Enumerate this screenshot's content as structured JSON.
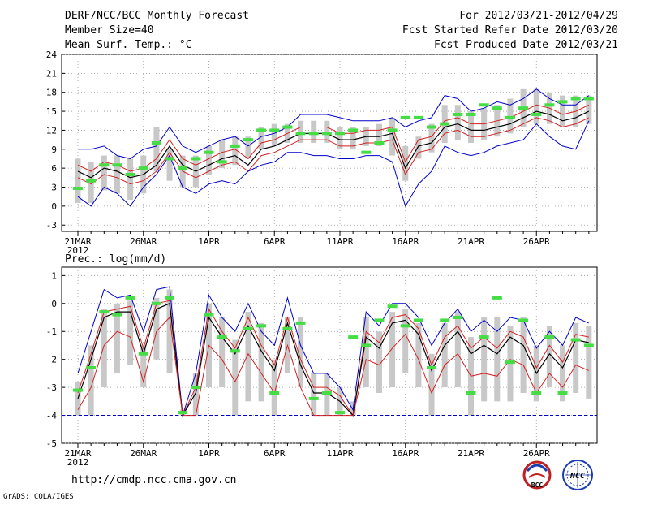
{
  "header": {
    "title": "DERF/NCC/BCC Monthly Forecast",
    "member_size": "Member Size=40",
    "period": "For 2012/03/21-2012/04/29",
    "started": "Fcst Started Refer Date 2012/03/20",
    "produced": "Fcst Produced Date 2012/03/21"
  },
  "footer": {
    "url": "http://cmdp.ncc.cma.gov.cn",
    "grads": "GrADS: COLA/IGES",
    "logo_bcc": "BCC",
    "logo_ncc": "NCC"
  },
  "colors": {
    "max_min": "#0000cc",
    "spread": "#d42020",
    "mean": "#000000",
    "obs": "#44dd44",
    "box": "#c8c8c8",
    "floor": "#0000cc"
  },
  "chart_data": [
    {
      "type": "line",
      "title": "Mean Surf. Temp.: °C",
      "ylabel": "°C",
      "ylim": [
        -4,
        24
      ],
      "yticks": [
        "-3",
        "0",
        "3",
        "6",
        "9",
        "12",
        "15",
        "18",
        "21",
        "24"
      ],
      "xticks": [
        "21MAR",
        "26MAR",
        "1APR",
        "6APR",
        "11APR",
        "16APR",
        "21APR",
        "26APR"
      ],
      "xyear": "2012",
      "days": 40,
      "series": [
        {
          "name": "max",
          "values": [
            9.0,
            9.0,
            9.5,
            8.0,
            7.5,
            9.0,
            9.5,
            12.5,
            9.5,
            8.5,
            9.5,
            10.5,
            11.0,
            9.5,
            11.0,
            11.5,
            12.5,
            14.5,
            14.5,
            14.5,
            14.0,
            13.5,
            13.5,
            13.5,
            14.0,
            12.5,
            13.5,
            14.0,
            17.5,
            17.0,
            15.0,
            15.5,
            16.5,
            16.0,
            17.0,
            18.5,
            17.0,
            16.0,
            16.0,
            17.5
          ]
        },
        {
          "name": "upper",
          "values": [
            6.5,
            5.5,
            7.0,
            6.5,
            5.5,
            6.0,
            7.5,
            10.5,
            7.5,
            6.5,
            7.5,
            8.5,
            9.0,
            7.5,
            10.0,
            10.5,
            11.5,
            12.5,
            12.5,
            12.5,
            11.5,
            11.5,
            12.0,
            12.0,
            12.5,
            7.0,
            10.5,
            11.0,
            13.5,
            14.0,
            13.0,
            13.0,
            13.5,
            14.0,
            15.0,
            16.0,
            15.5,
            14.5,
            15.0,
            16.0
          ]
        },
        {
          "name": "mean",
          "values": [
            5.5,
            4.5,
            6.0,
            5.5,
            4.5,
            5.0,
            6.5,
            9.5,
            6.5,
            5.5,
            6.5,
            7.5,
            8.0,
            6.5,
            9.0,
            9.5,
            10.5,
            11.5,
            11.5,
            11.5,
            10.5,
            10.5,
            11.0,
            11.0,
            11.5,
            6.0,
            9.5,
            10.0,
            12.5,
            13.0,
            12.0,
            12.0,
            12.5,
            13.0,
            14.0,
            15.0,
            14.5,
            13.5,
            14.0,
            15.0
          ]
        },
        {
          "name": "lower",
          "values": [
            4.5,
            3.5,
            5.0,
            4.5,
            3.5,
            4.0,
            5.5,
            8.5,
            5.5,
            4.5,
            5.5,
            6.5,
            7.0,
            5.5,
            8.0,
            8.5,
            9.5,
            10.5,
            10.5,
            10.5,
            9.5,
            9.5,
            10.0,
            10.0,
            10.5,
            5.0,
            8.5,
            9.0,
            11.5,
            12.0,
            11.0,
            11.0,
            11.5,
            12.0,
            13.0,
            14.0,
            13.5,
            12.5,
            13.0,
            14.0
          ]
        },
        {
          "name": "min",
          "values": [
            1.5,
            0.0,
            3.0,
            2.0,
            0.0,
            3.0,
            5.0,
            8.0,
            3.0,
            2.0,
            3.5,
            4.0,
            3.5,
            5.5,
            6.5,
            7.0,
            8.5,
            8.5,
            8.0,
            8.0,
            7.5,
            7.5,
            8.0,
            8.0,
            7.0,
            0.0,
            3.5,
            5.5,
            9.5,
            8.5,
            8.0,
            8.5,
            9.5,
            10.0,
            10.5,
            13.0,
            11.0,
            9.5,
            9.0,
            13.5
          ]
        },
        {
          "name": "observed",
          "values": [
            2.8,
            4.0,
            6.5,
            6.5,
            5.0,
            6.0,
            10.0,
            7.5,
            6.0,
            7.5,
            8.5,
            7.0,
            9.5,
            10.5,
            12.0,
            12.0,
            12.5,
            11.5,
            11.5,
            11.5,
            11.5,
            12.0,
            8.5,
            10.0,
            12.0,
            14.0,
            14.0,
            12.5,
            13.0,
            14.5,
            14.5,
            16.0,
            15.5,
            14.0,
            15.5,
            14.5,
            16.0,
            16.5,
            17.0,
            17.0
          ]
        }
      ],
      "boxes": [
        [
          0.5,
          7.5
        ],
        [
          0.5,
          7.0
        ],
        [
          2.5,
          8.0
        ],
        [
          2.0,
          8.0
        ],
        [
          1.0,
          7.5
        ],
        [
          2.0,
          8.0
        ],
        [
          5.5,
          12.5
        ],
        [
          4.0,
          9.0
        ],
        [
          3.0,
          8.0
        ],
        [
          3.0,
          8.0
        ],
        [
          5.0,
          9.5
        ],
        [
          6.0,
          10.5
        ],
        [
          6.5,
          11.0
        ],
        [
          7.5,
          11.0
        ],
        [
          9.0,
          12.5
        ],
        [
          9.5,
          13.0
        ],
        [
          10.0,
          13.0
        ],
        [
          10.0,
          13.5
        ],
        [
          10.0,
          13.5
        ],
        [
          10.0,
          13.5
        ],
        [
          9.0,
          12.5
        ],
        [
          9.0,
          12.5
        ],
        [
          9.5,
          12.5
        ],
        [
          9.5,
          13.0
        ],
        [
          8.0,
          14.0
        ],
        [
          4.0,
          9.5
        ],
        [
          7.5,
          11.0
        ],
        [
          8.5,
          13.0
        ],
        [
          10.0,
          16.0
        ],
        [
          10.5,
          16.0
        ],
        [
          10.0,
          15.0
        ],
        [
          10.5,
          15.5
        ],
        [
          11.0,
          16.0
        ],
        [
          11.5,
          17.0
        ],
        [
          12.5,
          18.5
        ],
        [
          13.0,
          18.5
        ],
        [
          13.0,
          18.0
        ],
        [
          12.5,
          17.5
        ],
        [
          12.5,
          17.5
        ],
        [
          13.0,
          17.5
        ]
      ]
    },
    {
      "type": "line",
      "title": "Prec.: log(mm/d)",
      "ylabel": "log(mm/d)",
      "ylim": [
        -5,
        1.3
      ],
      "yticks": [
        "-5",
        "-4",
        "-3",
        "-2",
        "-1",
        "0",
        "1"
      ],
      "xticks": [
        "21MAR",
        "26MAR",
        "1APR",
        "6APR",
        "11APR",
        "16APR",
        "21APR",
        "26APR"
      ],
      "xyear": "2012",
      "days": 40,
      "floor": -4,
      "series": [
        {
          "name": "max",
          "values": [
            -2.5,
            -1.0,
            0.5,
            0.2,
            0.3,
            -1.0,
            0.5,
            0.6,
            -4.0,
            -2.5,
            0.3,
            -0.5,
            -1.0,
            0.0,
            -1.0,
            -1.5,
            0.2,
            -1.5,
            -2.5,
            -2.5,
            -3.0,
            -3.8,
            -0.3,
            -0.8,
            0.0,
            0.0,
            -0.5,
            -1.5,
            -0.7,
            -0.2,
            -1.0,
            -0.6,
            -1.0,
            -0.5,
            -0.6,
            -1.6,
            -1.0,
            -1.5,
            -0.5,
            -0.7
          ]
        },
        {
          "name": "upper",
          "values": [
            -3.2,
            -1.8,
            -0.3,
            -0.2,
            -0.1,
            -1.6,
            0.0,
            0.1,
            -4.0,
            -3.0,
            -0.2,
            -1.0,
            -1.6,
            -0.5,
            -1.5,
            -2.2,
            -0.5,
            -2.0,
            -3.0,
            -3.0,
            -3.3,
            -4.0,
            -1.0,
            -1.4,
            -0.5,
            -0.4,
            -0.9,
            -2.2,
            -1.2,
            -0.8,
            -1.6,
            -1.2,
            -1.6,
            -1.0,
            -1.2,
            -2.3,
            -1.5,
            -2.1,
            -1.1,
            -1.2
          ]
        },
        {
          "name": "mean",
          "values": [
            -3.4,
            -2.0,
            -0.5,
            -0.3,
            -0.3,
            -1.8,
            -0.2,
            0.0,
            -4.0,
            -3.2,
            -0.5,
            -1.2,
            -1.8,
            -0.8,
            -1.7,
            -2.4,
            -0.7,
            -2.2,
            -3.2,
            -3.2,
            -3.5,
            -4.0,
            -1.2,
            -1.6,
            -0.7,
            -0.6,
            -1.1,
            -2.4,
            -1.5,
            -1.0,
            -1.8,
            -1.5,
            -1.8,
            -1.2,
            -1.5,
            -2.5,
            -1.8,
            -2.3,
            -1.3,
            -1.4
          ]
        },
        {
          "name": "lower",
          "values": [
            -3.8,
            -3.0,
            -1.5,
            -1.0,
            -1.2,
            -2.8,
            -1.0,
            -0.5,
            -4.0,
            -4.0,
            -1.5,
            -2.0,
            -2.8,
            -1.8,
            -2.5,
            -3.2,
            -1.5,
            -3.0,
            -4.0,
            -4.0,
            -4.0,
            -4.0,
            -2.0,
            -2.2,
            -1.6,
            -1.1,
            -2.0,
            -3.2,
            -2.2,
            -1.8,
            -2.6,
            -2.5,
            -2.6,
            -2.0,
            -2.2,
            -3.2,
            -2.5,
            -3.0,
            -2.2,
            -2.4
          ]
        },
        {
          "name": "min",
          "values": [
            -4.0,
            -4.0,
            -4.0,
            -4.0,
            -4.0,
            -4.0,
            -4.0,
            -4.0,
            -4.0,
            -4.0,
            -4.0,
            -4.0,
            -4.0,
            -4.0,
            -4.0,
            -4.0,
            -4.0,
            -4.0,
            -4.0,
            -4.0,
            -4.0,
            -4.0,
            -4.0,
            -4.0,
            -4.0,
            -4.0,
            -4.0,
            -4.0,
            -4.0,
            -4.0,
            -4.0,
            -4.0,
            -4.0,
            -4.0,
            -4.0,
            -4.0,
            -4.0,
            -4.0,
            -4.0,
            -4.0
          ]
        },
        {
          "name": "observed",
          "values": [
            -3.1,
            -2.3,
            -0.3,
            -0.4,
            0.2,
            -1.8,
            0.0,
            0.2,
            -3.9,
            -3.0,
            -0.4,
            -1.2,
            -1.7,
            -0.9,
            -0.8,
            -3.2,
            -0.9,
            -0.7,
            -3.4,
            -3.2,
            -3.9,
            -1.2,
            -1.5,
            -0.6,
            -0.1,
            -0.8,
            -0.6,
            -2.3,
            -0.6,
            -0.5,
            -3.2,
            -1.2,
            0.2,
            -2.1,
            -0.6,
            -3.2,
            -1.2,
            -3.2,
            -1.3,
            -1.5
          ]
        }
      ],
      "boxes": [
        [
          -4.0,
          -2.8
        ],
        [
          -4.0,
          -1.5
        ],
        [
          -3.0,
          -0.2
        ],
        [
          -2.5,
          0.0
        ],
        [
          -2.2,
          0.1
        ],
        [
          -3.0,
          -1.5
        ],
        [
          -2.0,
          0.2
        ],
        [
          -2.5,
          0.5
        ],
        [
          -4.0,
          -3.8
        ],
        [
          -4.0,
          -2.5
        ],
        [
          -3.0,
          0.0
        ],
        [
          -3.0,
          -0.5
        ],
        [
          -4.0,
          -1.3
        ],
        [
          -3.5,
          -0.3
        ],
        [
          -3.5,
          -0.7
        ],
        [
          -4.0,
          -2.0
        ],
        [
          -2.5,
          -0.5
        ],
        [
          -3.0,
          -0.5
        ],
        [
          -4.0,
          -2.5
        ],
        [
          -4.0,
          -2.5
        ],
        [
          -4.0,
          -3.0
        ],
        [
          -4.0,
          -3.5
        ],
        [
          -3.0,
          -0.5
        ],
        [
          -3.2,
          -1.0
        ],
        [
          -3.0,
          -0.3
        ],
        [
          -2.5,
          -0.2
        ],
        [
          -3.0,
          -0.7
        ],
        [
          -4.0,
          -1.8
        ],
        [
          -3.0,
          -0.7
        ],
        [
          -3.0,
          -0.3
        ],
        [
          -4.0,
          -1.2
        ],
        [
          -3.5,
          -0.5
        ],
        [
          -3.5,
          -0.5
        ],
        [
          -3.5,
          -0.8
        ],
        [
          -3.2,
          -0.5
        ],
        [
          -3.5,
          -1.5
        ],
        [
          -3.0,
          -0.8
        ],
        [
          -3.5,
          -1.5
        ],
        [
          -3.2,
          -0.7
        ],
        [
          -3.4,
          -0.8
        ]
      ]
    }
  ]
}
